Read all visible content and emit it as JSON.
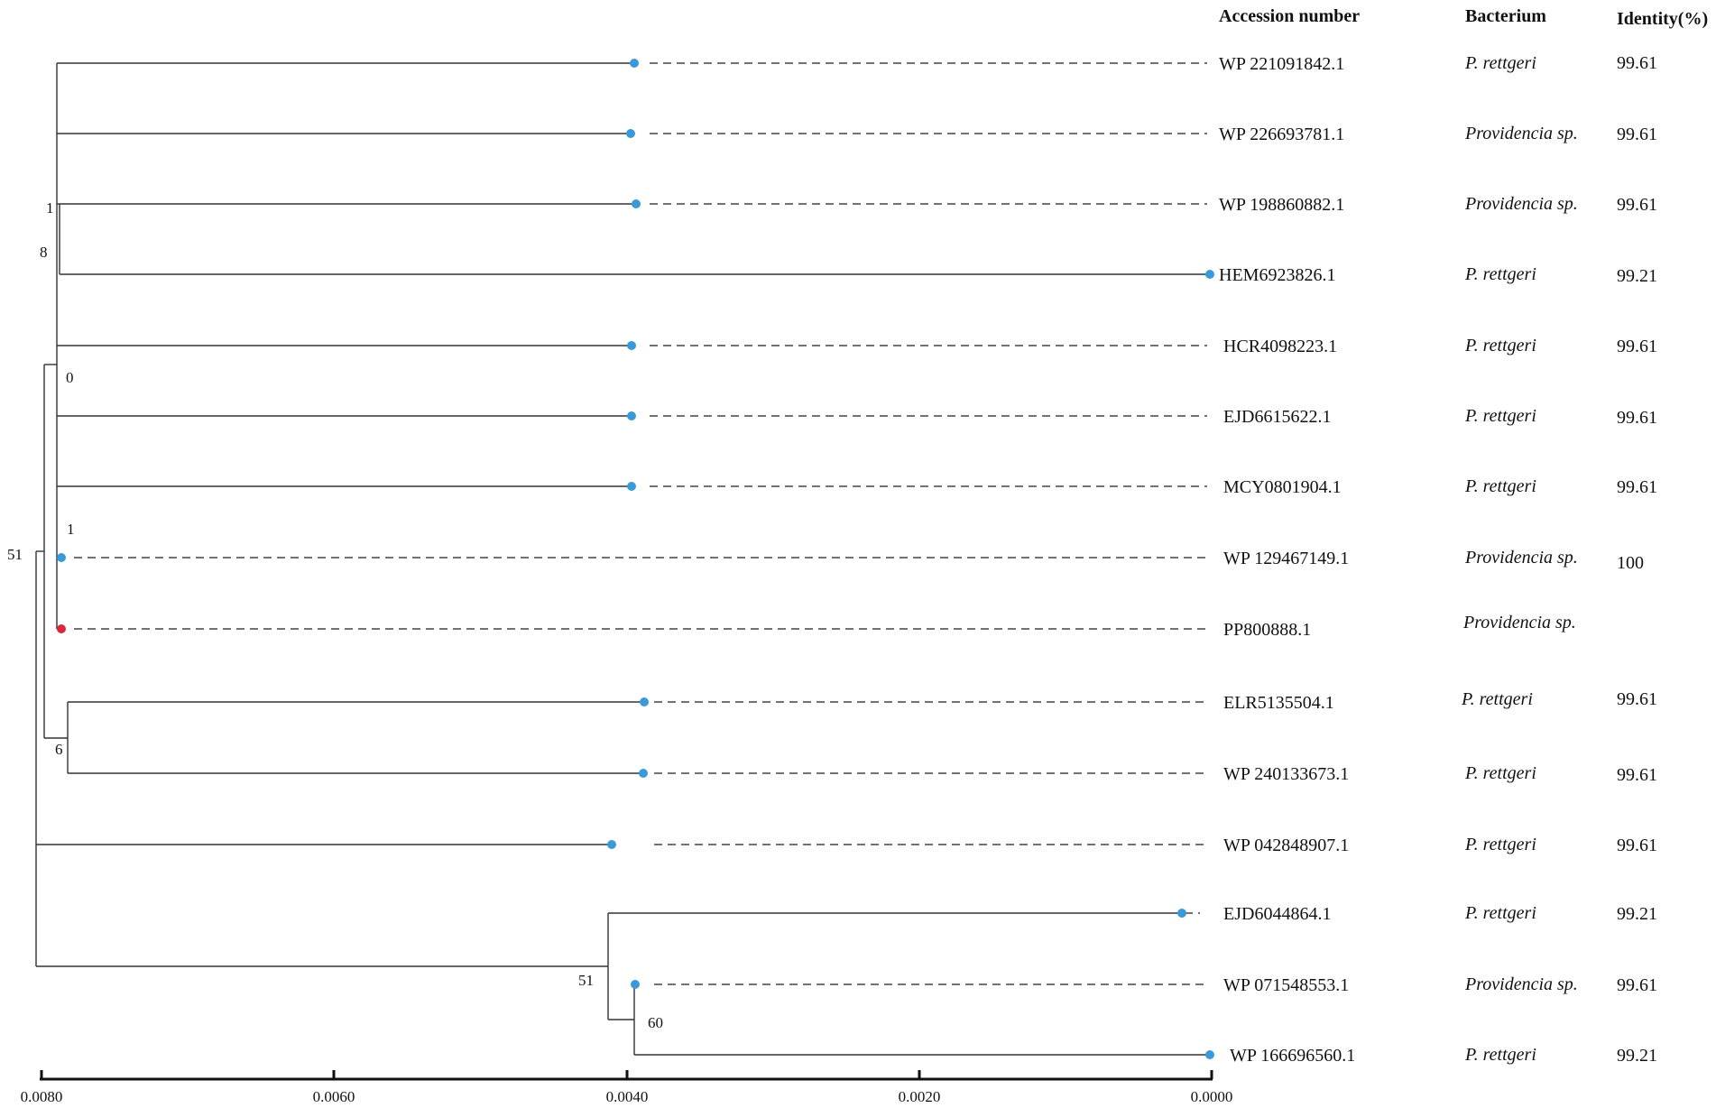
{
  "header": {
    "accession_label": "Accession number",
    "bacterium_label": "Bacterium",
    "identity_label": "Identity(%)"
  },
  "colors": {
    "reference_node": "#3a9ad9",
    "query_node": "#d9283c",
    "branch": "#333333"
  },
  "tree": {
    "scale_axis": {
      "ticks": [
        "0.0080",
        "0.0060",
        "0.0040",
        "0.0020",
        "0.0000"
      ],
      "tick_values": [
        0.008,
        0.006,
        0.004,
        0.002,
        0.0
      ],
      "direction": "reversed"
    },
    "bootstrap_labels": [
      "1",
      "8",
      "0",
      "1",
      "51",
      "6",
      "51",
      "60"
    ],
    "leaves": [
      {
        "accession": "WP 221091842.1",
        "bacterium": "P. rettgeri",
        "identity": "99.61",
        "highlight": false
      },
      {
        "accession": "WP 226693781.1",
        "bacterium": "Providencia sp.",
        "identity": "99.61",
        "highlight": false
      },
      {
        "accession": "WP 198860882.1",
        "bacterium": "Providencia sp.",
        "identity": "99.61",
        "highlight": false
      },
      {
        "accession": "HEM6923826.1",
        "bacterium": "P. rettgeri",
        "identity": "99.21",
        "highlight": false
      },
      {
        "accession": "HCR4098223.1",
        "bacterium": "P. rettgeri",
        "identity": "99.61",
        "highlight": false
      },
      {
        "accession": "EJD6615622.1",
        "bacterium": "P. rettgeri",
        "identity": "99.61",
        "highlight": false
      },
      {
        "accession": "MCY0801904.1",
        "bacterium": "P. rettgeri",
        "identity": "99.61",
        "highlight": false
      },
      {
        "accession": "WP 129467149.1",
        "bacterium": "Providencia sp.",
        "identity": "100",
        "highlight": false
      },
      {
        "accession": "PP800888.1",
        "bacterium": "Providencia sp.",
        "identity": "",
        "highlight": true
      },
      {
        "accession": "ELR5135504.1",
        "bacterium": "P. rettgeri",
        "identity": "99.61",
        "highlight": false
      },
      {
        "accession": "WP 240133673.1",
        "bacterium": "P. rettgeri",
        "identity": "99.61",
        "highlight": false
      },
      {
        "accession": "WP 042848907.1",
        "bacterium": "P. rettgeri",
        "identity": "99.61",
        "highlight": false
      },
      {
        "accession": "EJD6044864.1",
        "bacterium": "P. rettgeri",
        "identity": "99.21",
        "highlight": false
      },
      {
        "accession": "WP 071548553.1",
        "bacterium": "Providencia sp.",
        "identity": "99.61",
        "highlight": false
      },
      {
        "accession": "WP 166696560.1",
        "bacterium": "P. rettgeri",
        "identity": "99.21",
        "highlight": false
      }
    ]
  }
}
